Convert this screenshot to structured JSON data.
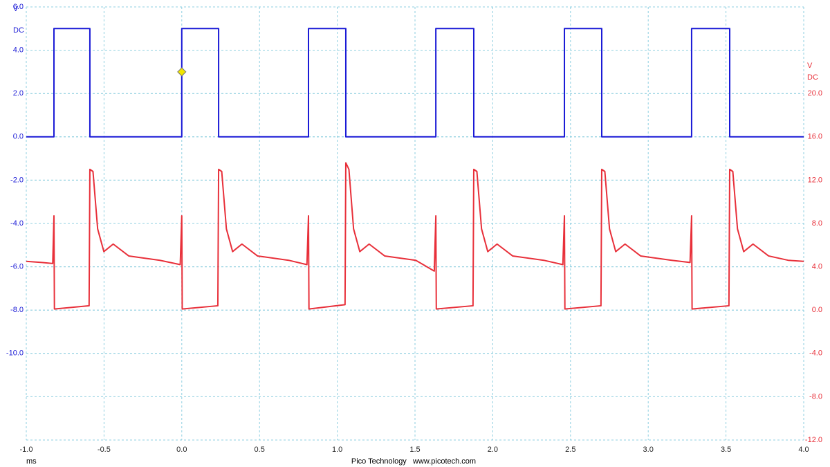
{
  "chart_data": {
    "type": "line",
    "xlabel": "ms",
    "ylabel": "V",
    "ylabel_mode": "DC",
    "y2label": "V",
    "y2label_mode": "DC",
    "ycolor": "#1a1ad6",
    "y2color": "#e8303a",
    "footer": "Pico Technology   www.picotech.com",
    "grid": true,
    "xlim": [
      -1.0,
      4.0
    ],
    "xticks": [
      {
        "value": -1.0,
        "label": "-1.0"
      },
      -0.5,
      {
        "value": 0,
        "label": "0.0"
      },
      0.5,
      {
        "value": 1.0,
        "label": "1.0"
      },
      1.5,
      {
        "value": 2.0,
        "label": "2.0"
      },
      2.5,
      {
        "value": 3.0,
        "label": "3.0"
      },
      3.5,
      {
        "value": 4.0,
        "label": "4.0"
      }
    ],
    "ylim": [
      -14,
      6
    ],
    "yticks": [
      {
        "value": 6,
        "label": "6.0"
      },
      {
        "value": 4,
        "label": "4.0"
      },
      {
        "value": 2,
        "label": "2.0"
      },
      {
        "value": 0,
        "label": "0.0"
      },
      {
        "value": -2,
        "label": "-2.0"
      },
      {
        "value": -4,
        "label": "-4.0"
      },
      {
        "value": -6,
        "label": "-6.0"
      },
      {
        "value": -8,
        "label": "-8.0"
      },
      {
        "value": -10,
        "label": "-10.0"
      }
    ],
    "y2lim": [
      -12,
      28
    ],
    "y2ticks": [
      {
        "value": 20,
        "label": "20.0"
      },
      {
        "value": 16,
        "label": "16.0"
      },
      {
        "value": 12,
        "label": "12.0"
      },
      {
        "value": 8,
        "label": "8.0"
      },
      {
        "value": 4,
        "label": "4.0"
      },
      {
        "value": 0,
        "label": "0.0"
      },
      {
        "value": -4,
        "label": "-4.0"
      },
      {
        "value": -8,
        "label": "-8.0"
      },
      {
        "value": -12,
        "label": "-12.0"
      }
    ],
    "trigger_marker": {
      "x": 0,
      "y": 3.0,
      "color": "#f2e600"
    },
    "series": [
      {
        "color": "#1a1ad6",
        "axis": "y",
        "x": [
          -1.0,
          -0.822,
          -0.822,
          -0.591,
          -0.591,
          0.0,
          0.0,
          0.237,
          0.237,
          0.815,
          0.815,
          1.055,
          1.055,
          1.634,
          1.634,
          1.878,
          1.878,
          2.461,
          2.461,
          2.701,
          2.701,
          3.279,
          3.279,
          3.524,
          3.524,
          4.0
        ],
        "values": [
          0,
          0,
          5,
          5,
          0,
          0,
          5,
          5,
          0,
          0,
          5,
          5,
          0,
          0,
          5,
          5,
          0,
          0,
          5,
          5,
          0,
          0,
          5,
          5,
          0,
          0
        ]
      },
      {
        "color": "#e8303a",
        "axis": "y2",
        "x": [
          -1.0,
          -0.9,
          -0.83,
          -0.822,
          -0.819,
          -0.596,
          -0.591,
          -0.571,
          -0.541,
          -0.501,
          -0.441,
          -0.341,
          -0.141,
          -0.01,
          0.0,
          0.003,
          0.232,
          0.237,
          0.257,
          0.287,
          0.327,
          0.387,
          0.487,
          0.687,
          0.805,
          0.815,
          0.818,
          1.05,
          1.055,
          1.075,
          1.105,
          1.145,
          1.205,
          1.305,
          1.505,
          1.624,
          1.634,
          1.637,
          1.873,
          1.878,
          1.898,
          1.928,
          1.968,
          2.028,
          2.128,
          2.328,
          2.451,
          2.461,
          2.464,
          2.696,
          2.701,
          2.721,
          2.751,
          2.791,
          2.851,
          2.951,
          3.151,
          3.269,
          3.279,
          3.282,
          3.519,
          3.524,
          3.544,
          3.574,
          3.614,
          3.674,
          3.774,
          3.9,
          4.0
        ],
        "values": [
          4.5,
          4.4,
          4.3,
          8.7,
          0.1,
          0.4,
          13.0,
          12.8,
          7.5,
          5.4,
          6.1,
          5.0,
          4.6,
          4.2,
          8.7,
          0.1,
          0.4,
          13.0,
          12.8,
          7.5,
          5.4,
          6.1,
          5.0,
          4.6,
          4.2,
          8.7,
          0.1,
          0.5,
          13.6,
          13.0,
          7.5,
          5.4,
          6.1,
          5.0,
          4.6,
          3.6,
          8.7,
          0.1,
          0.4,
          13.0,
          12.8,
          7.5,
          5.4,
          6.1,
          5.0,
          4.6,
          4.2,
          8.7,
          0.1,
          0.4,
          13.0,
          12.8,
          7.5,
          5.4,
          6.1,
          5.0,
          4.6,
          4.4,
          8.7,
          0.1,
          0.4,
          13.0,
          12.8,
          7.5,
          5.4,
          6.1,
          5.0,
          4.6,
          4.5
        ]
      }
    ]
  }
}
